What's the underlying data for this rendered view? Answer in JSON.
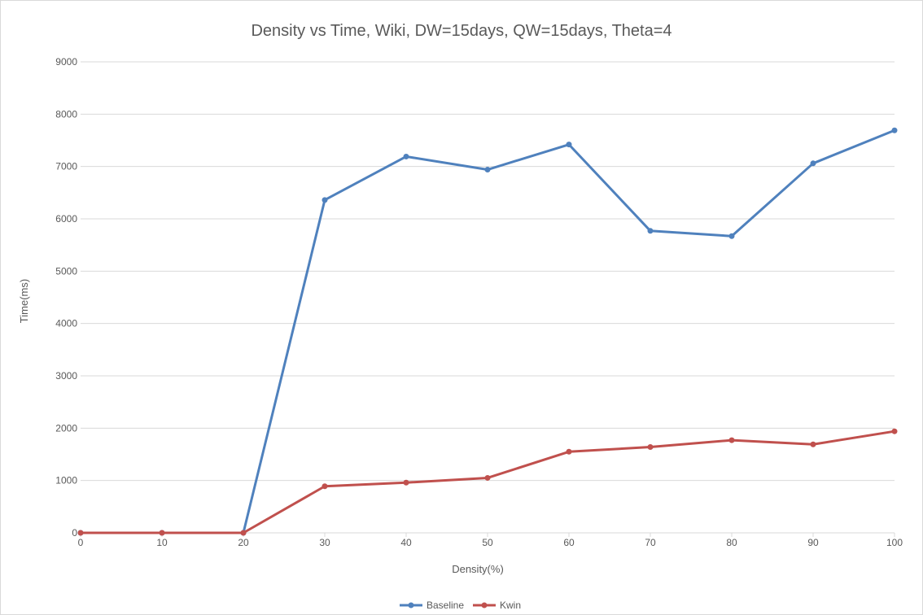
{
  "chart_data": {
    "type": "line",
    "title": "Density vs Time, Wiki, DW=15days, QW=15days, Theta=4",
    "xlabel": "Density(%)",
    "ylabel": "Time(ms)",
    "x": [
      0,
      10,
      20,
      30,
      40,
      50,
      60,
      70,
      80,
      90,
      100
    ],
    "xlim": [
      0,
      100
    ],
    "ylim": [
      0,
      9000
    ],
    "x_ticks": [
      "0",
      "10",
      "20",
      "30",
      "40",
      "50",
      "60",
      "70",
      "80",
      "90",
      "100"
    ],
    "y_ticks": [
      "0",
      "1000",
      "2000",
      "3000",
      "4000",
      "5000",
      "6000",
      "7000",
      "8000",
      "9000"
    ],
    "grid": true,
    "legend_position": "bottom",
    "series": [
      {
        "name": "Baseline",
        "color": "#4f81bd",
        "values": [
          0,
          0,
          0,
          6360,
          7190,
          6940,
          7420,
          5770,
          5670,
          7060,
          7690
        ]
      },
      {
        "name": "Kwin",
        "color": "#c0504d",
        "values": [
          0,
          0,
          0,
          890,
          960,
          1050,
          1550,
          1640,
          1770,
          1690,
          1940
        ]
      }
    ]
  }
}
